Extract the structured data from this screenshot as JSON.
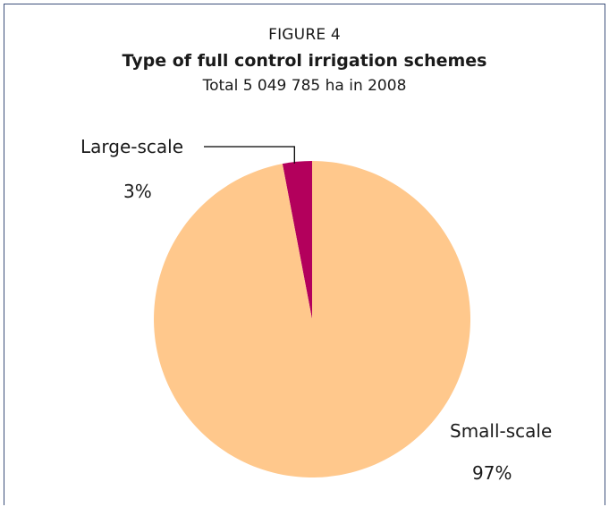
{
  "figure": {
    "label": "FIGURE 4",
    "title": "Type of full control irrigation schemes",
    "subtitle": "Total 5 049 785 ha in 2008"
  },
  "chart_data": {
    "type": "pie",
    "title": "Type of full control irrigation schemes",
    "subtitle": "Total 5 049 785 ha in 2008",
    "slices": [
      {
        "label": "Large-scale",
        "value": 3,
        "value_label": "3%",
        "color": "#b3005c"
      },
      {
        "label": "Small-scale",
        "value": 97,
        "value_label": "97%",
        "color": "#ffc88c"
      }
    ],
    "start": "12 o'clock",
    "direction": "counter-clockwise",
    "legend": "none"
  },
  "colors": {
    "border": "#3c4f7a",
    "leader_line": "#000000"
  }
}
